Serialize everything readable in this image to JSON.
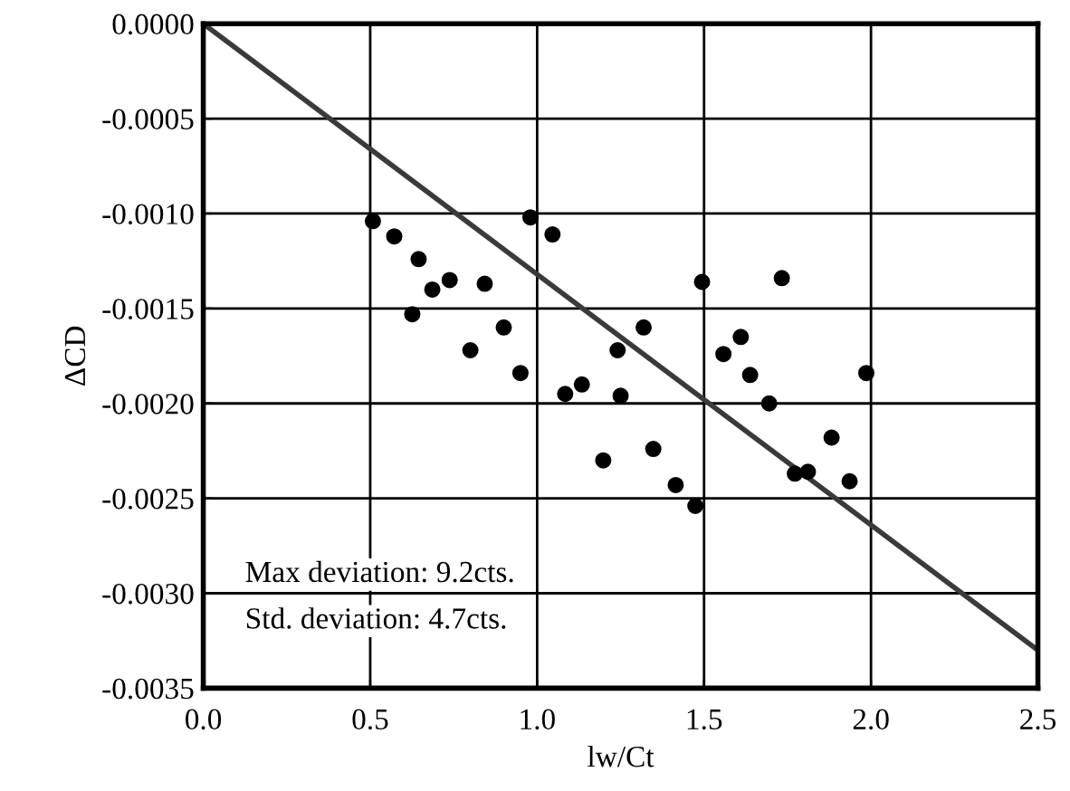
{
  "chart_data": {
    "type": "scatter",
    "xlabel": "lw/Ct",
    "ylabel": "ΔCD",
    "series": [
      {
        "color": "#000000",
        "marker": "circle",
        "x": [
          0.508,
          0.572,
          0.645,
          0.686,
          0.738,
          0.626,
          0.843,
          0.8,
          0.9,
          0.95,
          0.98,
          1.046,
          1.084,
          1.134,
          1.198,
          1.494,
          1.733,
          1.319,
          1.241,
          1.25,
          1.348,
          1.415,
          1.474,
          1.61,
          1.558,
          1.638,
          1.986,
          1.695,
          1.882,
          1.772,
          1.811,
          1.936
        ],
        "values": [
          -0.00104,
          -0.00112,
          -0.00124,
          -0.0014,
          -0.00135,
          -0.00153,
          -0.00137,
          -0.00172,
          -0.0016,
          -0.00184,
          -0.00102,
          -0.00111,
          -0.00195,
          -0.0019,
          -0.0023,
          -0.00136,
          -0.00134,
          -0.0016,
          -0.00172,
          -0.00196,
          -0.00224,
          -0.00243,
          -0.00254,
          -0.00165,
          -0.00174,
          -0.00185,
          -0.00184,
          -0.002,
          -0.00218,
          -0.00237,
          -0.00236,
          -0.00241
        ]
      },
      {
        "type": "line",
        "color": "#3a3a3a",
        "marker": "none",
        "line_style": "solid",
        "x": [
          0,
          2.5
        ],
        "values": [
          0,
          -0.0033
        ]
      }
    ],
    "xlim": [
      0,
      2.5
    ],
    "ylim": [
      -0.0035,
      0
    ],
    "xticks": [
      {
        "value": 0,
        "label": "0.0"
      },
      {
        "value": 0.5,
        "label": "0.5"
      },
      {
        "value": 1,
        "label": "1.0"
      },
      {
        "value": 1.5,
        "label": "1.5"
      },
      {
        "value": 2,
        "label": "2.0"
      },
      {
        "value": 2.5,
        "label": "2.5"
      }
    ],
    "yticks": [
      {
        "value": 0,
        "label": "0.0000"
      },
      {
        "value": -0.0005,
        "label": "-0.0005"
      },
      {
        "value": -0.001,
        "label": "-0.0010"
      },
      {
        "value": -0.0015,
        "label": "-0.0015"
      },
      {
        "value": -0.002,
        "label": "-0.0020"
      },
      {
        "value": -0.0025,
        "label": "-0.0025"
      },
      {
        "value": -0.003,
        "label": "-0.0030"
      },
      {
        "value": -0.0035,
        "label": "-0.0035"
      }
    ],
    "grid": true,
    "legend": false,
    "annotations": [
      "Max deviation: 9.2cts.",
      "Std. deviation: 4.7cts."
    ]
  }
}
